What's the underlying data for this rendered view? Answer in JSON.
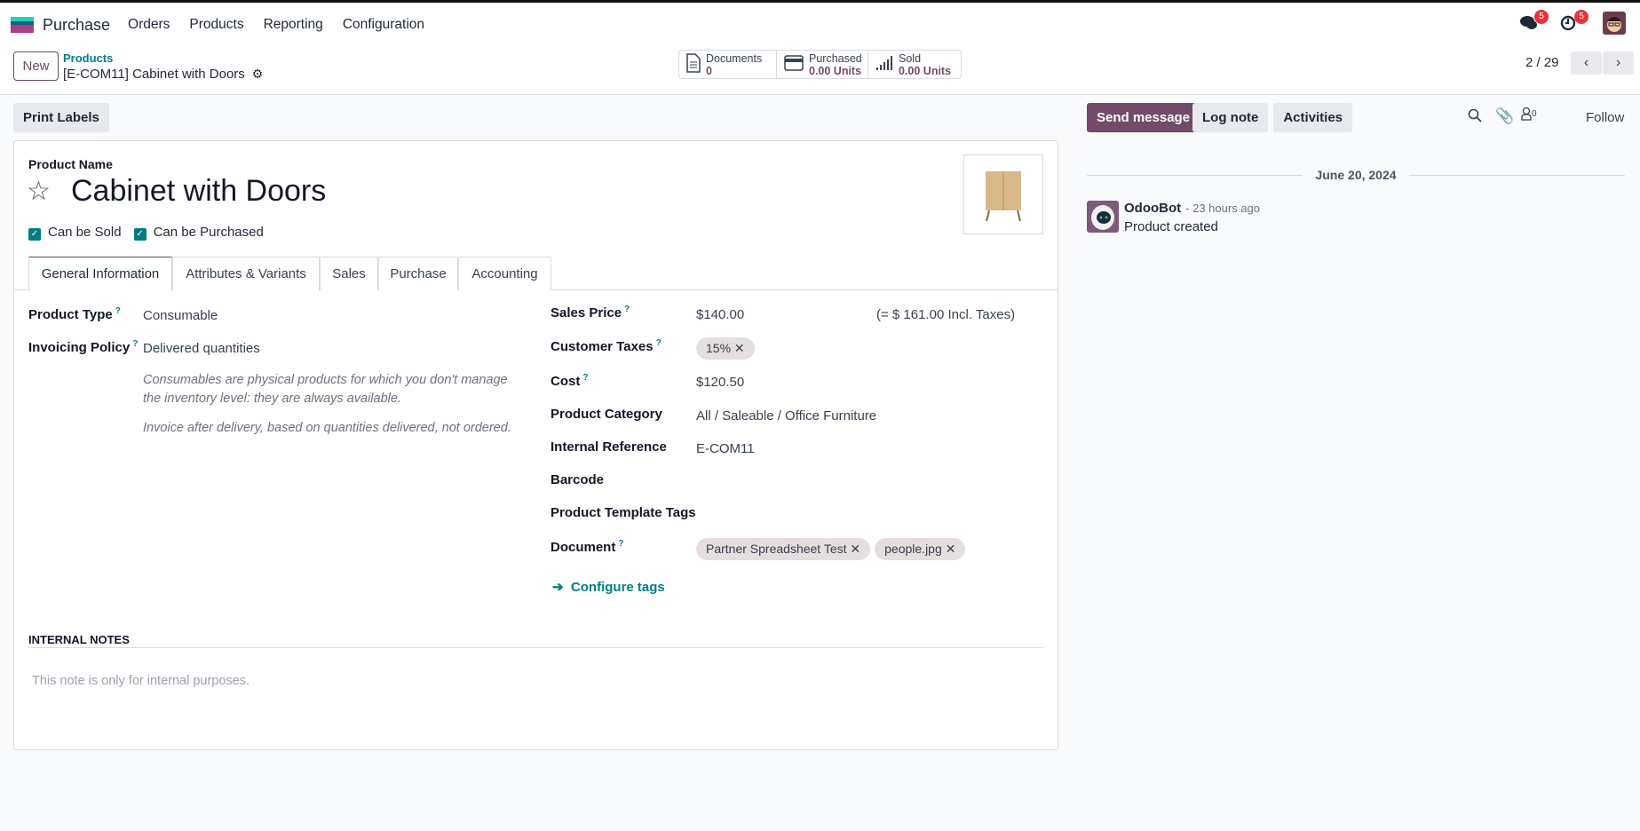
{
  "navbar": {
    "brand": "Purchase",
    "items": [
      "Orders",
      "Products",
      "Reporting",
      "Configuration"
    ],
    "messages_badge": "5",
    "activities_badge": "5",
    "brand_colors": [
      "#1ad3bb",
      "#1b5e7b",
      "#a93f8b"
    ]
  },
  "control_panel": {
    "new_label": "New",
    "breadcrumb_parent": "Products",
    "breadcrumb_current": "[E-COM11] Cabinet with Doors",
    "stats": [
      {
        "label": "Documents",
        "value": "0",
        "icon": "document-icon"
      },
      {
        "label": "Purchased",
        "value": "0.00 Units",
        "icon": "credit-card-icon"
      },
      {
        "label": "Sold",
        "value": "0.00 Units",
        "icon": "signal-bars-icon"
      }
    ],
    "pager": "2 / 29"
  },
  "actions": {
    "print_labels": "Print Labels"
  },
  "form": {
    "product_name_label": "Product Name",
    "product_name": "Cabinet with Doors",
    "can_be_sold": "Can be Sold",
    "can_be_purchased": "Can be Purchased",
    "tabs": [
      "General Information",
      "Attributes & Variants",
      "Sales",
      "Purchase",
      "Accounting"
    ],
    "active_tab": "General Information",
    "help_mark": "?",
    "product_type_label": "Product Type",
    "product_type": "Consumable",
    "invoicing_policy_label": "Invoicing Policy",
    "invoicing_policy": "Delivered quantities",
    "note1": "Consumables are physical products for which you don't manage the inventory level: they are always available.",
    "note2": "Invoice after delivery, based on quantities delivered, not ordered.",
    "sales_price_label": "Sales Price",
    "sales_price": "$140.00",
    "incl_taxes": "(= $ 161.00 Incl. Taxes)",
    "customer_taxes_label": "Customer Taxes",
    "customer_taxes": [
      "15%"
    ],
    "cost_label": "Cost",
    "cost": "$120.50",
    "category_label": "Product Category",
    "category": "All / Saleable / Office Furniture",
    "internal_ref_label": "Internal Reference",
    "internal_ref": "E-COM11",
    "barcode_label": "Barcode",
    "template_tags_label": "Product Template Tags",
    "document_label": "Document",
    "documents": [
      "Partner Spreadsheet Test",
      "people.jpg"
    ],
    "configure_tags": "Configure tags",
    "internal_notes_label": "INTERNAL NOTES",
    "internal_notes_placeholder": "This note is only for internal purposes."
  },
  "chatter": {
    "send_message": "Send message",
    "log_note": "Log note",
    "activities": "Activities",
    "followers_count": "0",
    "follow": "Follow",
    "date": "June 20, 2024",
    "message": {
      "author": "OdooBot",
      "time": "- 23 hours ago",
      "body": "Product created"
    }
  },
  "colors": {
    "primary": "#714b67",
    "accent": "#017e84"
  }
}
